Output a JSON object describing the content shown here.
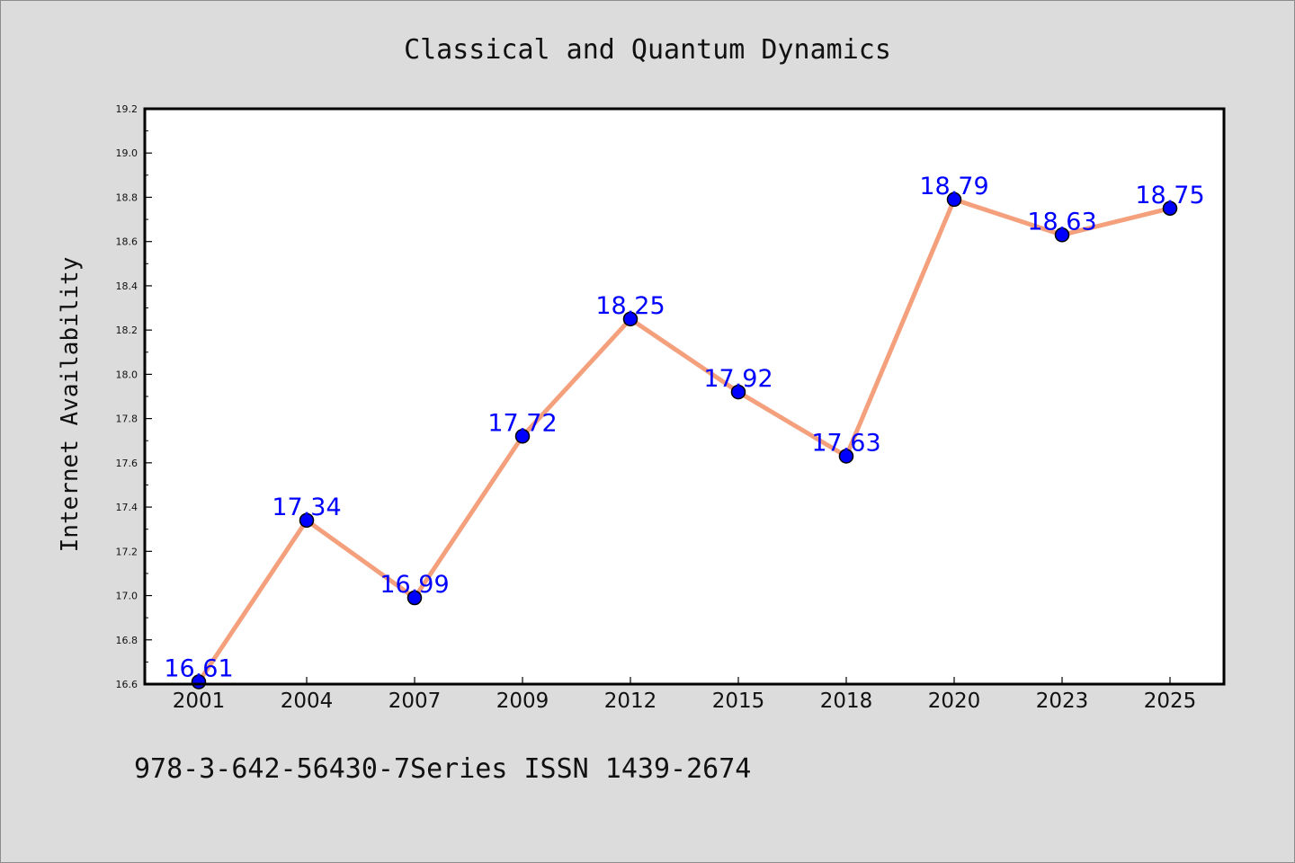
{
  "chart_data": {
    "type": "line",
    "title": "Classical and Quantum Dynamics",
    "xlabel": "",
    "ylabel": "Internet Availability",
    "categories": [
      "2001",
      "2004",
      "2007",
      "2009",
      "2012",
      "2015",
      "2018",
      "2020",
      "2023",
      "2025"
    ],
    "series": [
      {
        "values": [
          16.61,
          17.34,
          16.99,
          17.72,
          18.25,
          17.92,
          17.63,
          18.79,
          18.63,
          18.75
        ],
        "line_color": "#f4a07c",
        "marker_color": "#0000ff"
      }
    ],
    "data_labels": [
      "16.61",
      "17.34",
      "16.99",
      "17.72",
      "18.25",
      "17.92",
      "17.63",
      "18.79",
      "18.63",
      "18.75"
    ],
    "ylim": [
      16.6,
      19.2
    ],
    "yticks": [
      "16.6",
      "16.8",
      "17.0",
      "17.2",
      "17.4",
      "17.6",
      "17.8",
      "18.0",
      "18.2",
      "18.4",
      "18.6",
      "18.8",
      "19.0",
      "19.2"
    ],
    "grid": false,
    "legend": "none"
  },
  "footer": {
    "text": "978-3-642-56430-7Series ISSN 1439-2674"
  }
}
